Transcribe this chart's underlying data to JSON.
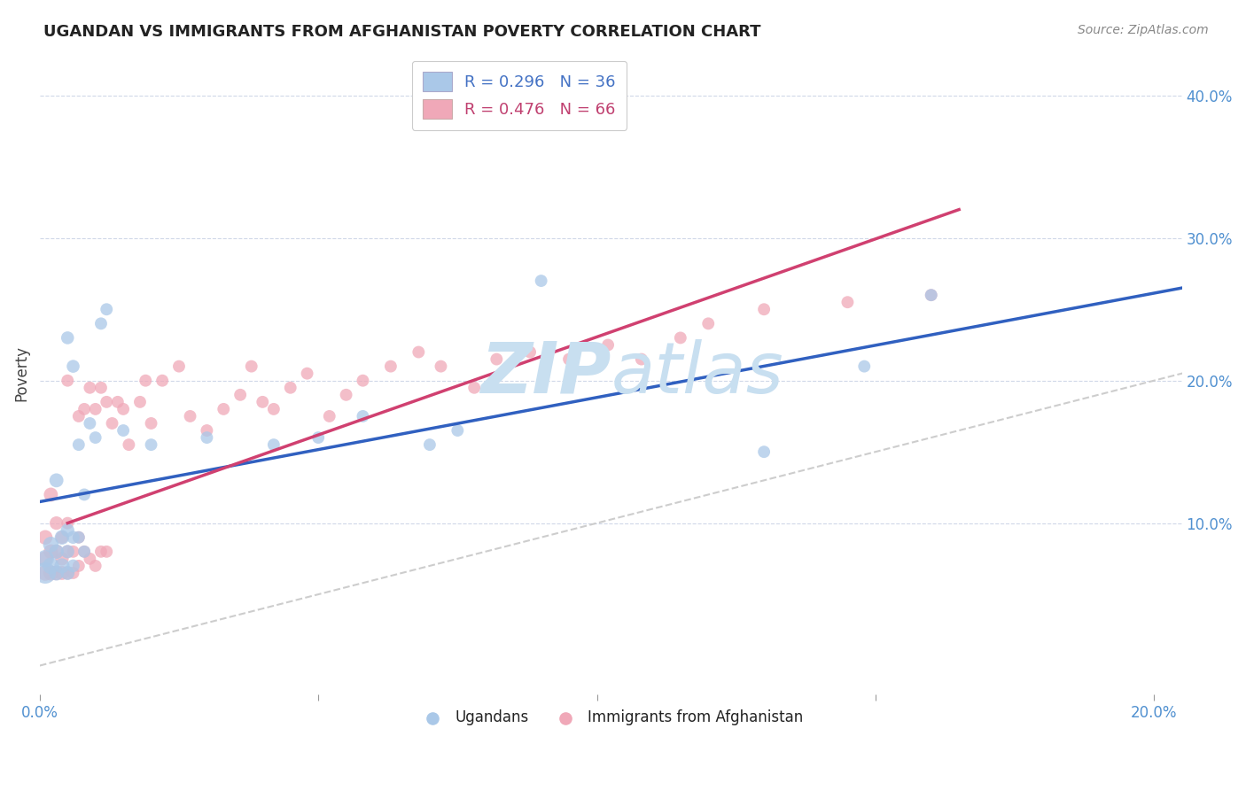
{
  "title": "UGANDAN VS IMMIGRANTS FROM AFGHANISTAN POVERTY CORRELATION CHART",
  "source": "Source: ZipAtlas.com",
  "ylabel": "Poverty",
  "xlim": [
    0.0,
    0.205
  ],
  "ylim": [
    -0.02,
    0.43
  ],
  "xticks": [
    0.0,
    0.05,
    0.1,
    0.15,
    0.2
  ],
  "yticks": [
    0.1,
    0.2,
    0.3,
    0.4
  ],
  "legend_blue_r": "R = 0.296",
  "legend_blue_n": "N = 36",
  "legend_pink_r": "R = 0.476",
  "legend_pink_n": "N = 66",
  "blue_color": "#aac8e8",
  "pink_color": "#f0a8b8",
  "trend_blue": "#3060c0",
  "trend_pink": "#d04070",
  "ref_line_color": "#c8c8c8",
  "watermark_color": "#c8dff0",
  "ugandans_label": "Ugandans",
  "afghanistan_label": "Immigrants from Afghanistan",
  "ugandan_x": [
    0.001,
    0.001,
    0.002,
    0.002,
    0.003,
    0.003,
    0.003,
    0.004,
    0.004,
    0.005,
    0.005,
    0.005,
    0.005,
    0.006,
    0.006,
    0.006,
    0.007,
    0.007,
    0.008,
    0.008,
    0.009,
    0.01,
    0.011,
    0.012,
    0.015,
    0.02,
    0.03,
    0.042,
    0.05,
    0.058,
    0.07,
    0.075,
    0.09,
    0.13,
    0.148,
    0.16
  ],
  "ugandan_y": [
    0.065,
    0.075,
    0.07,
    0.085,
    0.065,
    0.08,
    0.13,
    0.07,
    0.09,
    0.065,
    0.08,
    0.095,
    0.23,
    0.07,
    0.09,
    0.21,
    0.09,
    0.155,
    0.08,
    0.12,
    0.17,
    0.16,
    0.24,
    0.25,
    0.165,
    0.155,
    0.16,
    0.155,
    0.16,
    0.175,
    0.155,
    0.165,
    0.27,
    0.15,
    0.21,
    0.26
  ],
  "ugandan_sizes": [
    300,
    200,
    180,
    160,
    150,
    140,
    130,
    150,
    140,
    130,
    120,
    120,
    110,
    110,
    110,
    110,
    100,
    100,
    100,
    100,
    100,
    100,
    100,
    100,
    100,
    100,
    100,
    100,
    100,
    100,
    100,
    100,
    100,
    100,
    100,
    100
  ],
  "afghan_x": [
    0.001,
    0.001,
    0.001,
    0.002,
    0.002,
    0.002,
    0.003,
    0.003,
    0.003,
    0.004,
    0.004,
    0.004,
    0.005,
    0.005,
    0.005,
    0.005,
    0.006,
    0.006,
    0.007,
    0.007,
    0.007,
    0.008,
    0.008,
    0.009,
    0.009,
    0.01,
    0.01,
    0.011,
    0.011,
    0.012,
    0.012,
    0.013,
    0.014,
    0.015,
    0.016,
    0.018,
    0.019,
    0.02,
    0.022,
    0.025,
    0.027,
    0.03,
    0.033,
    0.036,
    0.038,
    0.04,
    0.042,
    0.045,
    0.048,
    0.052,
    0.055,
    0.058,
    0.063,
    0.068,
    0.072,
    0.078,
    0.082,
    0.088,
    0.095,
    0.102,
    0.108,
    0.115,
    0.12,
    0.13,
    0.145,
    0.16
  ],
  "afghan_y": [
    0.065,
    0.075,
    0.09,
    0.065,
    0.08,
    0.12,
    0.065,
    0.08,
    0.1,
    0.065,
    0.075,
    0.09,
    0.065,
    0.08,
    0.1,
    0.2,
    0.065,
    0.08,
    0.07,
    0.09,
    0.175,
    0.08,
    0.18,
    0.075,
    0.195,
    0.07,
    0.18,
    0.08,
    0.195,
    0.08,
    0.185,
    0.17,
    0.185,
    0.18,
    0.155,
    0.185,
    0.2,
    0.17,
    0.2,
    0.21,
    0.175,
    0.165,
    0.18,
    0.19,
    0.21,
    0.185,
    0.18,
    0.195,
    0.205,
    0.175,
    0.19,
    0.2,
    0.21,
    0.22,
    0.21,
    0.195,
    0.215,
    0.22,
    0.215,
    0.225,
    0.215,
    0.23,
    0.24,
    0.25,
    0.255,
    0.26
  ],
  "afghan_sizes": [
    160,
    150,
    140,
    150,
    140,
    130,
    140,
    130,
    120,
    130,
    120,
    110,
    120,
    110,
    100,
    100,
    100,
    100,
    100,
    100,
    100,
    100,
    100,
    100,
    100,
    100,
    100,
    100,
    100,
    100,
    100,
    100,
    100,
    100,
    100,
    100,
    100,
    100,
    100,
    100,
    100,
    100,
    100,
    100,
    100,
    100,
    100,
    100,
    100,
    100,
    100,
    100,
    100,
    100,
    100,
    100,
    100,
    100,
    100,
    100,
    100,
    100,
    100,
    100,
    100,
    100
  ],
  "ug_trend_x0": 0.0,
  "ug_trend_x1": 0.205,
  "ug_trend_y0": 0.115,
  "ug_trend_y1": 0.265,
  "af_trend_x0": 0.005,
  "af_trend_x1": 0.165,
  "af_trend_y0": 0.1,
  "af_trend_y1": 0.32
}
